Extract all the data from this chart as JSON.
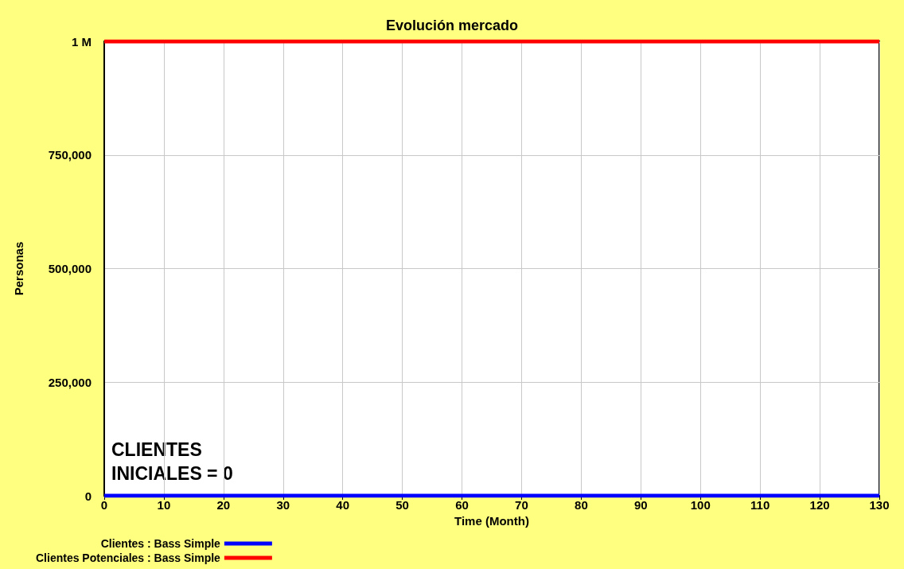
{
  "chart_data": {
    "type": "line",
    "title": "Evolución mercado",
    "xlabel": "Time (Month)",
    "ylabel": "Personas",
    "x": [
      0,
      130
    ],
    "series": [
      {
        "name": "Clientes : Bass Simple",
        "color": "#0000ff",
        "values": [
          0,
          0
        ]
      },
      {
        "name": "Clientes Potenciales : Bass Simple",
        "color": "#ff0000",
        "values": [
          1000000,
          1000000
        ]
      }
    ],
    "xlim": [
      0,
      130
    ],
    "xticks": [
      0,
      10,
      20,
      30,
      40,
      50,
      60,
      70,
      80,
      90,
      100,
      110,
      120,
      130
    ],
    "ylim": [
      0,
      1000000
    ],
    "yticks": [
      0,
      {
        "value": 250000,
        "label": "250,000"
      },
      {
        "value": 500000,
        "label": "500,000"
      },
      {
        "value": 750000,
        "label": "750,000"
      },
      {
        "value": 1000000,
        "label": "1 M"
      }
    ],
    "grid": true,
    "legend": "bottom",
    "marker": "none",
    "line_style": "solid",
    "annotations": [
      "CLIENTES INICIALES = 0"
    ]
  }
}
